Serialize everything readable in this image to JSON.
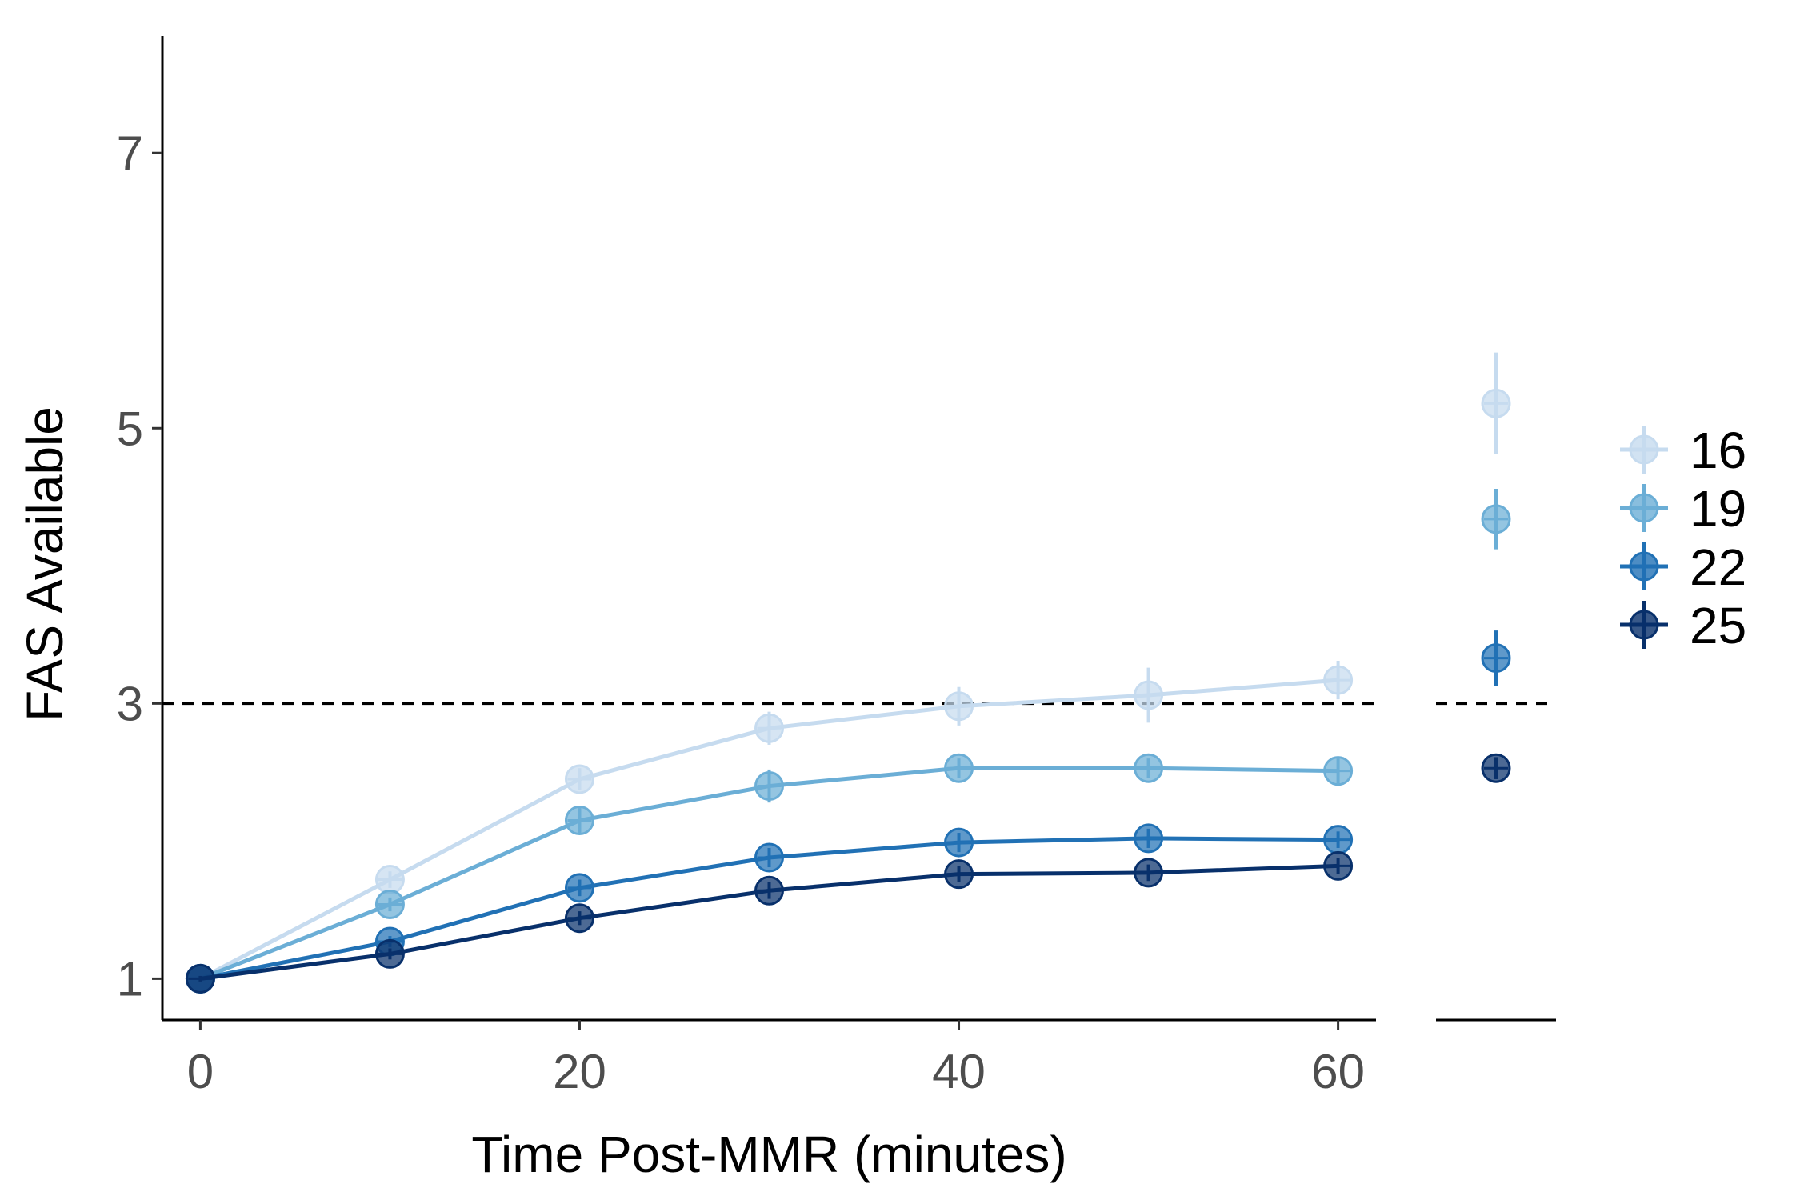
{
  "chart_data": {
    "type": "line",
    "xlabel": "Time Post-MMR (minutes)",
    "ylabel": "FAS Available",
    "xlim": [
      -2,
      62
    ],
    "ylim": [
      0.7,
      7.85
    ],
    "xticks": [
      0,
      20,
      40,
      60
    ],
    "xtick_labels": [
      "0",
      "20",
      "40",
      "60"
    ],
    "yticks": [
      1,
      3,
      5,
      7
    ],
    "ytick_labels": [
      "1",
      "3",
      "5",
      "7"
    ],
    "reference_line": {
      "y": 3,
      "style": "dashed"
    },
    "x": [
      0,
      10,
      20,
      30,
      40,
      50,
      60
    ],
    "grid": false,
    "legend_placement": "right",
    "series": [
      {
        "name": "16",
        "color": "#c6dbef",
        "values": [
          1.0,
          1.72,
          2.45,
          2.82,
          2.98,
          3.06,
          3.17
        ],
        "errors": [
          0.02,
          0.06,
          0.08,
          0.12,
          0.14,
          0.2,
          0.14
        ],
        "side_point": {
          "value": 5.18,
          "error": 0.37
        }
      },
      {
        "name": "19",
        "color": "#6baed6",
        "values": [
          1.0,
          1.54,
          2.15,
          2.4,
          2.53,
          2.53,
          2.51
        ],
        "errors": [
          0.02,
          0.05,
          0.09,
          0.12,
          0.07,
          0.07,
          0.09
        ],
        "side_point": {
          "value": 4.34,
          "error": 0.22
        }
      },
      {
        "name": "22",
        "color": "#2171b5",
        "values": [
          1.0,
          1.27,
          1.66,
          1.88,
          1.99,
          2.02,
          2.01
        ],
        "errors": [
          0.02,
          0.04,
          0.06,
          0.07,
          0.07,
          0.07,
          0.06
        ],
        "side_point": {
          "value": 3.33,
          "error": 0.2
        }
      },
      {
        "name": "25",
        "color": "#08306b",
        "values": [
          1.0,
          1.18,
          1.44,
          1.64,
          1.76,
          1.77,
          1.82
        ],
        "errors": [
          0.02,
          0.04,
          0.05,
          0.06,
          0.06,
          0.06,
          0.06
        ],
        "side_point": {
          "value": 2.53,
          "error": 0.08
        }
      }
    ]
  }
}
